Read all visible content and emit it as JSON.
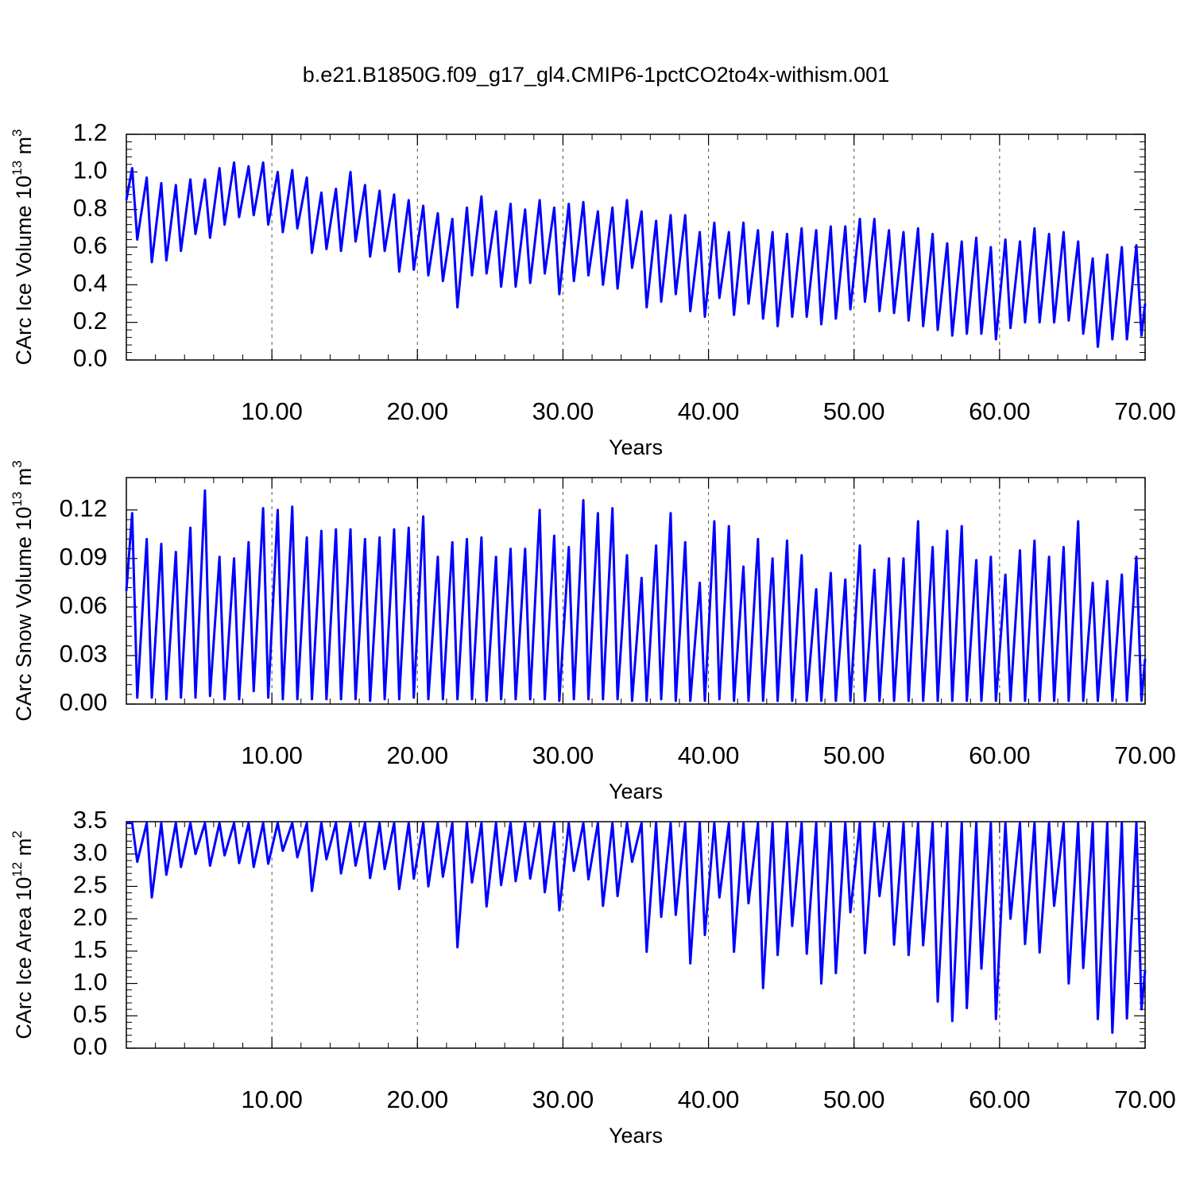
{
  "chart_data": [
    {
      "type": "line",
      "title": "b.e21.B1850G.f09_g17_gl4.CMIP6-1pctCO2to4x-withism.001",
      "ylabel": [
        "CArc Ice Volume 10",
        "13",
        " m",
        "3"
      ],
      "xlabel": "Years",
      "color": "#0000ff",
      "grid": true,
      "xlim": [
        0,
        70
      ],
      "ylim": [
        0,
        1.2
      ],
      "xticks": [
        {
          "value": 10,
          "label": "10.00"
        },
        {
          "value": 20,
          "label": "20.00"
        },
        {
          "value": 30,
          "label": "30.00"
        },
        {
          "value": 40,
          "label": "40.00"
        },
        {
          "value": 50,
          "label": "50.00"
        },
        {
          "value": 60,
          "label": "60.00"
        },
        {
          "value": 70,
          "label": "70.00"
        }
      ],
      "yticks": [
        {
          "value": 0,
          "label": "0.0"
        },
        0.2,
        0.4,
        0.6,
        0.8,
        {
          "value": 1,
          "label": "1.0"
        },
        1.2
      ],
      "x": [
        0,
        0.4,
        0.75,
        1.4,
        1.75,
        2.4,
        2.75,
        3.4,
        3.75,
        4.4,
        4.75,
        5.4,
        5.75,
        6.4,
        6.75,
        7.4,
        7.75,
        8.4,
        8.75,
        9.4,
        9.75,
        10.4,
        10.75,
        11.4,
        11.75,
        12.4,
        12.75,
        13.4,
        13.75,
        14.4,
        14.75,
        15.4,
        15.75,
        16.4,
        16.75,
        17.4,
        17.75,
        18.4,
        18.75,
        19.4,
        19.75,
        20.4,
        20.75,
        21.4,
        21.75,
        22.4,
        22.75,
        23.4,
        23.75,
        24.4,
        24.75,
        25.4,
        25.75,
        26.4,
        26.75,
        27.4,
        27.75,
        28.4,
        28.75,
        29.4,
        29.75,
        30.4,
        30.75,
        31.4,
        31.75,
        32.4,
        32.75,
        33.4,
        33.75,
        34.4,
        34.75,
        35.4,
        35.75,
        36.4,
        36.75,
        37.4,
        37.75,
        38.4,
        38.75,
        39.4,
        39.75,
        40.4,
        40.75,
        41.4,
        41.75,
        42.4,
        42.75,
        43.4,
        43.75,
        44.4,
        44.75,
        45.4,
        45.75,
        46.4,
        46.75,
        47.4,
        47.75,
        48.4,
        48.75,
        49.4,
        49.75,
        50.4,
        50.75,
        51.4,
        51.75,
        52.4,
        52.75,
        53.4,
        53.75,
        54.4,
        54.75,
        55.4,
        55.75,
        56.4,
        56.75,
        57.4,
        57.75,
        58.4,
        58.75,
        59.4,
        59.75,
        60.4,
        60.75,
        61.4,
        61.75,
        62.4,
        62.75,
        63.4,
        63.75,
        64.4,
        64.75,
        65.4,
        65.75,
        66.4,
        66.75,
        67.4,
        67.75,
        68.4,
        68.75,
        69.4,
        69.75,
        70
      ],
      "values": [
        0.85,
        1.02,
        0.64,
        0.97,
        0.52,
        0.94,
        0.53,
        0.93,
        0.58,
        0.96,
        0.67,
        0.96,
        0.65,
        1.02,
        0.72,
        1.05,
        0.76,
        1.03,
        0.77,
        1.05,
        0.72,
        1.0,
        0.68,
        1.01,
        0.7,
        0.97,
        0.57,
        0.89,
        0.59,
        0.91,
        0.58,
        1.0,
        0.63,
        0.93,
        0.55,
        0.9,
        0.58,
        0.88,
        0.47,
        0.85,
        0.48,
        0.82,
        0.45,
        0.78,
        0.42,
        0.75,
        0.28,
        0.81,
        0.45,
        0.87,
        0.46,
        0.79,
        0.39,
        0.83,
        0.39,
        0.8,
        0.41,
        0.85,
        0.46,
        0.81,
        0.35,
        0.83,
        0.42,
        0.84,
        0.45,
        0.79,
        0.4,
        0.81,
        0.38,
        0.85,
        0.49,
        0.79,
        0.28,
        0.74,
        0.31,
        0.77,
        0.35,
        0.77,
        0.26,
        0.68,
        0.23,
        0.73,
        0.33,
        0.68,
        0.24,
        0.73,
        0.3,
        0.69,
        0.22,
        0.68,
        0.18,
        0.67,
        0.23,
        0.7,
        0.23,
        0.69,
        0.19,
        0.71,
        0.22,
        0.71,
        0.27,
        0.75,
        0.31,
        0.75,
        0.26,
        0.69,
        0.25,
        0.68,
        0.21,
        0.7,
        0.18,
        0.67,
        0.16,
        0.62,
        0.13,
        0.63,
        0.14,
        0.65,
        0.14,
        0.6,
        0.11,
        0.64,
        0.17,
        0.63,
        0.2,
        0.7,
        0.2,
        0.67,
        0.2,
        0.68,
        0.21,
        0.63,
        0.14,
        0.54,
        0.07,
        0.56,
        0.11,
        0.6,
        0.11,
        0.61,
        0.13,
        0.3
      ]
    },
    {
      "type": "line",
      "ylabel": [
        "CArc Snow Volume 10",
        "13",
        " m",
        "3"
      ],
      "xlabel": "Years",
      "color": "#0000ff",
      "grid": true,
      "xlim": [
        0,
        70
      ],
      "ylim": [
        0,
        0.14
      ],
      "xticks": [
        {
          "value": 10,
          "label": "10.00"
        },
        {
          "value": 20,
          "label": "20.00"
        },
        {
          "value": 30,
          "label": "30.00"
        },
        {
          "value": 40,
          "label": "40.00"
        },
        {
          "value": 50,
          "label": "50.00"
        },
        {
          "value": 60,
          "label": "60.00"
        },
        {
          "value": 70,
          "label": "70.00"
        }
      ],
      "yticks": [
        {
          "value": 0,
          "label": "0.00"
        },
        0.03,
        0.06,
        0.09,
        0.12
      ],
      "x": [
        0,
        0.4,
        0.75,
        1.4,
        1.75,
        2.4,
        2.75,
        3.4,
        3.75,
        4.4,
        4.75,
        5.4,
        5.75,
        6.4,
        6.75,
        7.4,
        7.75,
        8.4,
        8.75,
        9.4,
        9.75,
        10.4,
        10.75,
        11.4,
        11.75,
        12.4,
        12.75,
        13.4,
        13.75,
        14.4,
        14.75,
        15.4,
        15.75,
        16.4,
        16.75,
        17.4,
        17.75,
        18.4,
        18.75,
        19.4,
        19.75,
        20.4,
        20.75,
        21.4,
        21.75,
        22.4,
        22.75,
        23.4,
        23.75,
        24.4,
        24.75,
        25.4,
        25.75,
        26.4,
        26.75,
        27.4,
        27.75,
        28.4,
        28.75,
        29.4,
        29.75,
        30.4,
        30.75,
        31.4,
        31.75,
        32.4,
        32.75,
        33.4,
        33.75,
        34.4,
        34.75,
        35.4,
        35.75,
        36.4,
        36.75,
        37.4,
        37.75,
        38.4,
        38.75,
        39.4,
        39.75,
        40.4,
        40.75,
        41.4,
        41.75,
        42.4,
        42.75,
        43.4,
        43.75,
        44.4,
        44.75,
        45.4,
        45.75,
        46.4,
        46.75,
        47.4,
        47.75,
        48.4,
        48.75,
        49.4,
        49.75,
        50.4,
        50.75,
        51.4,
        51.75,
        52.4,
        52.75,
        53.4,
        53.75,
        54.4,
        54.75,
        55.4,
        55.75,
        56.4,
        56.75,
        57.4,
        57.75,
        58.4,
        58.75,
        59.4,
        59.75,
        60.4,
        60.75,
        61.4,
        61.75,
        62.4,
        62.75,
        63.4,
        63.75,
        64.4,
        64.75,
        65.4,
        65.75,
        66.4,
        66.75,
        67.4,
        67.75,
        68.4,
        68.75,
        69.4,
        69.75,
        70
      ],
      "values": [
        0.07,
        0.118,
        0.004,
        0.102,
        0.004,
        0.099,
        0.003,
        0.094,
        0.004,
        0.109,
        0.004,
        0.132,
        0.005,
        0.091,
        0.003,
        0.09,
        0.003,
        0.1,
        0.008,
        0.121,
        0.004,
        0.12,
        0.003,
        0.122,
        0.003,
        0.103,
        0.003,
        0.107,
        0.003,
        0.108,
        0.003,
        0.108,
        0.003,
        0.102,
        0.002,
        0.103,
        0.003,
        0.108,
        0.003,
        0.109,
        0.004,
        0.116,
        0.003,
        0.091,
        0.003,
        0.1,
        0.003,
        0.102,
        0.003,
        0.103,
        0.002,
        0.091,
        0.003,
        0.096,
        0.003,
        0.096,
        0.003,
        0.12,
        0.003,
        0.104,
        0.002,
        0.097,
        0.003,
        0.126,
        0.003,
        0.118,
        0.003,
        0.121,
        0.003,
        0.092,
        0.002,
        0.078,
        0.002,
        0.098,
        0.003,
        0.118,
        0.002,
        0.1,
        0.002,
        0.075,
        0.002,
        0.113,
        0.003,
        0.11,
        0.002,
        0.085,
        0.002,
        0.102,
        0.002,
        0.09,
        0.002,
        0.101,
        0.002,
        0.092,
        0.002,
        0.071,
        0.002,
        0.081,
        0.002,
        0.077,
        0.002,
        0.098,
        0.002,
        0.083,
        0.002,
        0.09,
        0.002,
        0.09,
        0.002,
        0.113,
        0.002,
        0.097,
        0.002,
        0.107,
        0.002,
        0.11,
        0.002,
        0.089,
        0.002,
        0.091,
        0.002,
        0.08,
        0.002,
        0.095,
        0.002,
        0.101,
        0.002,
        0.091,
        0.002,
        0.097,
        0.002,
        0.113,
        0.002,
        0.075,
        0.002,
        0.076,
        0.002,
        0.08,
        0.002,
        0.091,
        0.002,
        0.028
      ]
    },
    {
      "type": "line",
      "ylabel": [
        "CArc Ice Area 10",
        "12",
        " m",
        "2"
      ],
      "xlabel": "Years",
      "color": "#0000ff",
      "grid": true,
      "xlim": [
        0,
        70
      ],
      "ylim": [
        0,
        3.5
      ],
      "xticks": [
        {
          "value": 10,
          "label": "10.00"
        },
        {
          "value": 20,
          "label": "20.00"
        },
        {
          "value": 30,
          "label": "30.00"
        },
        {
          "value": 40,
          "label": "40.00"
        },
        {
          "value": 50,
          "label": "50.00"
        },
        {
          "value": 60,
          "label": "60.00"
        },
        {
          "value": 70,
          "label": "70.00"
        }
      ],
      "yticks": [
        {
          "value": 0,
          "label": "0.0"
        },
        0.5,
        {
          "value": 1,
          "label": "1.0"
        },
        1.5,
        {
          "value": 2,
          "label": "2.0"
        },
        2.5,
        {
          "value": 3,
          "label": "3.0"
        },
        3.5
      ],
      "x": [
        0,
        0.4,
        0.75,
        1.4,
        1.75,
        2.4,
        2.75,
        3.4,
        3.75,
        4.4,
        4.75,
        5.4,
        5.75,
        6.4,
        6.75,
        7.4,
        7.75,
        8.4,
        8.75,
        9.4,
        9.75,
        10.4,
        10.75,
        11.4,
        11.75,
        12.4,
        12.75,
        13.4,
        13.75,
        14.4,
        14.75,
        15.4,
        15.75,
        16.4,
        16.75,
        17.4,
        17.75,
        18.4,
        18.75,
        19.4,
        19.75,
        20.4,
        20.75,
        21.4,
        21.75,
        22.4,
        22.75,
        23.4,
        23.75,
        24.4,
        24.75,
        25.4,
        25.75,
        26.4,
        26.75,
        27.4,
        27.75,
        28.4,
        28.75,
        29.4,
        29.75,
        30.4,
        30.75,
        31.4,
        31.75,
        32.4,
        32.75,
        33.4,
        33.75,
        34.4,
        34.75,
        35.4,
        35.75,
        36.4,
        36.75,
        37.4,
        37.75,
        38.4,
        38.75,
        39.4,
        39.75,
        40.4,
        40.75,
        41.4,
        41.75,
        42.4,
        42.75,
        43.4,
        43.75,
        44.4,
        44.75,
        45.4,
        45.75,
        46.4,
        46.75,
        47.4,
        47.75,
        48.4,
        48.75,
        49.4,
        49.75,
        50.4,
        50.75,
        51.4,
        51.75,
        52.4,
        52.75,
        53.4,
        53.75,
        54.4,
        54.75,
        55.4,
        55.75,
        56.4,
        56.75,
        57.4,
        57.75,
        58.4,
        58.75,
        59.4,
        59.75,
        60.4,
        60.75,
        61.4,
        61.75,
        62.4,
        62.75,
        63.4,
        63.75,
        64.4,
        64.75,
        65.4,
        65.75,
        66.4,
        66.75,
        67.4,
        67.75,
        68.4,
        68.75,
        69.4,
        69.75,
        70
      ],
      "values": [
        3.48,
        3.48,
        2.88,
        3.48,
        2.33,
        3.48,
        2.68,
        3.48,
        2.8,
        3.48,
        3.0,
        3.48,
        2.82,
        3.48,
        2.98,
        3.48,
        2.86,
        3.48,
        2.8,
        3.48,
        2.85,
        3.48,
        3.05,
        3.48,
        2.95,
        3.48,
        2.43,
        3.48,
        2.92,
        3.48,
        2.7,
        3.48,
        2.82,
        3.48,
        2.63,
        3.48,
        2.77,
        3.48,
        2.46,
        3.48,
        2.62,
        3.48,
        2.5,
        3.48,
        2.65,
        3.48,
        1.56,
        3.48,
        2.56,
        3.48,
        2.19,
        3.48,
        2.52,
        3.48,
        2.58,
        3.48,
        2.62,
        3.48,
        2.41,
        3.48,
        2.13,
        3.48,
        2.74,
        3.48,
        2.61,
        3.48,
        2.2,
        3.48,
        2.35,
        3.48,
        2.88,
        3.48,
        1.49,
        3.48,
        2.03,
        3.48,
        2.06,
        3.48,
        1.31,
        3.48,
        1.75,
        3.48,
        2.33,
        3.48,
        1.49,
        3.48,
        2.24,
        3.48,
        0.93,
        3.48,
        1.44,
        3.48,
        1.89,
        3.48,
        1.46,
        3.48,
        1.0,
        3.48,
        1.16,
        3.48,
        2.1,
        3.48,
        1.47,
        3.48,
        2.35,
        3.48,
        1.6,
        3.48,
        1.44,
        3.48,
        1.59,
        3.48,
        0.72,
        3.48,
        0.42,
        3.48,
        0.62,
        3.48,
        1.23,
        3.48,
        0.45,
        3.48,
        2.0,
        3.48,
        1.61,
        3.48,
        1.48,
        3.48,
        2.2,
        3.48,
        1.0,
        3.48,
        1.24,
        3.48,
        0.45,
        3.48,
        0.24,
        3.48,
        0.46,
        3.48,
        0.6,
        1.2
      ]
    }
  ]
}
